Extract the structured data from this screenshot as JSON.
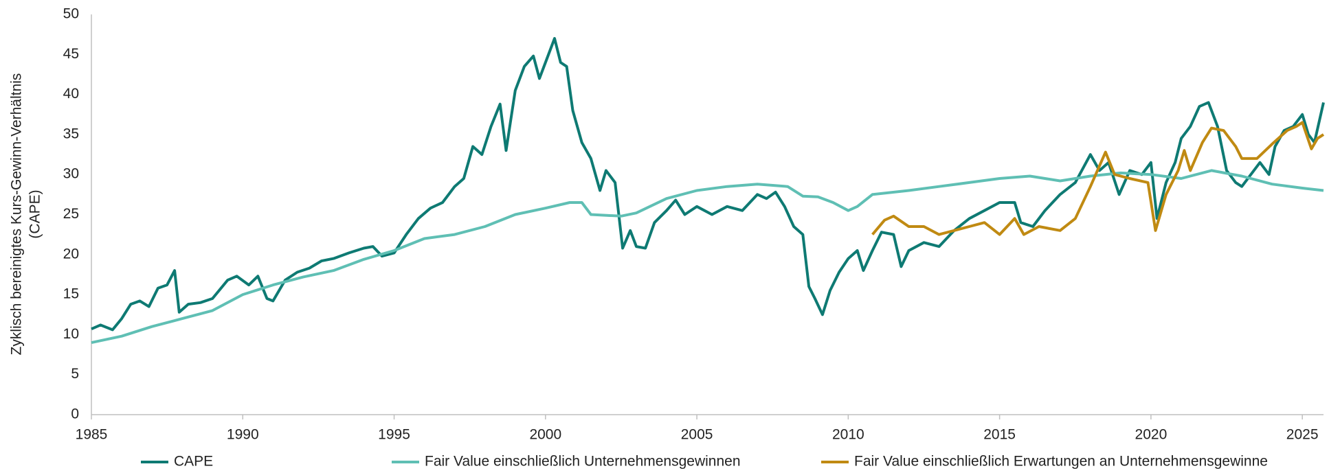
{
  "chart_data": {
    "type": "line",
    "ylabel": [
      "Zyklisch bereinigtes Kurs-Gewinn-Verhältnis",
      "(CAPE)"
    ],
    "xlim": [
      1985,
      2025.7
    ],
    "xticks": [
      1985,
      1990,
      1995,
      2000,
      2005,
      2010,
      2015,
      2020,
      2025
    ],
    "ylim": [
      0,
      50
    ],
    "yticks": [
      0,
      5,
      10,
      15,
      20,
      25,
      30,
      35,
      40,
      45,
      50
    ],
    "grid": false,
    "legend": "bottom",
    "series": [
      {
        "name": "CAPE",
        "color": "#0e7a73",
        "x": [
          1985.0,
          1985.3,
          1985.7,
          1986.0,
          1986.3,
          1986.6,
          1986.9,
          1987.2,
          1987.5,
          1987.75,
          1987.9,
          1988.2,
          1988.6,
          1989.0,
          1989.5,
          1989.8,
          1990.2,
          1990.5,
          1990.8,
          1991.0,
          1991.4,
          1991.8,
          1992.2,
          1992.6,
          1993.0,
          1993.5,
          1994.0,
          1994.3,
          1994.6,
          1995.0,
          1995.4,
          1995.8,
          1996.2,
          1996.6,
          1997.0,
          1997.3,
          1997.6,
          1997.9,
          1998.2,
          1998.5,
          1998.7,
          1999.0,
          1999.3,
          1999.6,
          1999.8,
          2000.0,
          2000.3,
          2000.5,
          2000.7,
          2000.9,
          2001.2,
          2001.5,
          2001.8,
          2002.0,
          2002.3,
          2002.55,
          2002.8,
          2003.0,
          2003.3,
          2003.6,
          2004.0,
          2004.3,
          2004.6,
          2005.0,
          2005.5,
          2006.0,
          2006.5,
          2007.0,
          2007.3,
          2007.6,
          2007.9,
          2008.2,
          2008.5,
          2008.7,
          2008.9,
          2009.15,
          2009.4,
          2009.7,
          2010.0,
          2010.3,
          2010.5,
          2010.8,
          2011.1,
          2011.5,
          2011.75,
          2012.0,
          2012.5,
          2013.0,
          2013.5,
          2014.0,
          2014.5,
          2015.0,
          2015.5,
          2015.7,
          2016.1,
          2016.5,
          2017.0,
          2017.5,
          2018.0,
          2018.3,
          2018.6,
          2018.95,
          2019.3,
          2019.7,
          2020.0,
          2020.2,
          2020.5,
          2020.8,
          2021.0,
          2021.3,
          2021.6,
          2021.9,
          2022.2,
          2022.5,
          2022.8,
          2023.0,
          2023.3,
          2023.6,
          2023.9,
          2024.1,
          2024.4,
          2024.7,
          2025.0,
          2025.2,
          2025.4,
          2025.7
        ],
        "values": [
          10.7,
          11.2,
          10.6,
          12.0,
          13.8,
          14.2,
          13.5,
          15.8,
          16.2,
          18.0,
          12.8,
          13.8,
          14.0,
          14.5,
          16.8,
          17.3,
          16.2,
          17.3,
          14.5,
          14.2,
          16.8,
          17.8,
          18.3,
          19.2,
          19.5,
          20.2,
          20.8,
          21.0,
          19.8,
          20.2,
          22.5,
          24.5,
          25.8,
          26.5,
          28.5,
          29.5,
          33.5,
          32.5,
          36.0,
          38.8,
          33.0,
          40.5,
          43.5,
          44.8,
          42.0,
          44.0,
          47.0,
          44.0,
          43.5,
          38.0,
          34.0,
          32.0,
          28.0,
          30.5,
          29.0,
          20.8,
          23.0,
          21.0,
          20.8,
          24.0,
          25.5,
          26.8,
          25.0,
          26.0,
          25.0,
          26.0,
          25.5,
          27.5,
          27.0,
          27.8,
          26.0,
          23.5,
          22.5,
          16.0,
          14.5,
          12.5,
          15.5,
          17.8,
          19.5,
          20.5,
          18.0,
          20.5,
          22.8,
          22.5,
          18.5,
          20.5,
          21.5,
          21.0,
          23.0,
          24.5,
          25.5,
          26.5,
          26.5,
          24.0,
          23.5,
          25.5,
          27.5,
          29.0,
          32.5,
          30.5,
          31.5,
          27.5,
          30.5,
          30.0,
          31.5,
          24.5,
          29.0,
          31.5,
          34.5,
          36.0,
          38.5,
          39.0,
          36.0,
          30.5,
          29.0,
          28.5,
          30.0,
          31.5,
          30.0,
          33.5,
          35.5,
          36.0,
          37.5,
          35.0,
          34.0,
          39.0
        ]
      },
      {
        "name": "Fair Value einschließlich Unternehmensgewinnen",
        "color": "#5fbfb4",
        "x": [
          1985,
          1986,
          1987,
          1988,
          1989,
          1990,
          1991,
          1992,
          1993,
          1994,
          1995,
          1996,
          1997,
          1998,
          1999,
          2000,
          2000.8,
          2001.2,
          2001.5,
          2002.5,
          2003.0,
          2004,
          2005,
          2006,
          2007,
          2008,
          2008.5,
          2009,
          2009.5,
          2010,
          2010.3,
          2010.8,
          2012,
          2013,
          2014,
          2015,
          2016,
          2017,
          2018,
          2019,
          2020,
          2021,
          2022,
          2023,
          2024,
          2025,
          2025.7
        ],
        "values": [
          9.0,
          9.8,
          11.0,
          12.0,
          13.0,
          15.0,
          16.2,
          17.2,
          18.0,
          19.4,
          20.5,
          22.0,
          22.5,
          23.5,
          25.0,
          25.8,
          26.5,
          26.5,
          25.0,
          24.8,
          25.2,
          27.0,
          28.0,
          28.5,
          28.8,
          28.5,
          27.3,
          27.2,
          26.5,
          25.5,
          26.0,
          27.5,
          28.0,
          28.5,
          29.0,
          29.5,
          29.8,
          29.2,
          29.8,
          30.2,
          30.0,
          29.5,
          30.5,
          29.8,
          28.8,
          28.3,
          28.0
        ]
      },
      {
        "name": "Fair Value einschließlich Erwartungen an Unternehmensgewinne",
        "color": "#c08a12",
        "x": [
          2010.8,
          2011.2,
          2011.5,
          2012,
          2012.5,
          2013,
          2013.5,
          2014,
          2014.5,
          2015,
          2015.5,
          2015.8,
          2016.3,
          2017,
          2017.5,
          2018,
          2018.5,
          2018.8,
          2019.3,
          2019.9,
          2020.15,
          2020.5,
          2020.9,
          2021.1,
          2021.3,
          2021.7,
          2022.0,
          2022.4,
          2022.8,
          2023.0,
          2023.5,
          2024.0,
          2024.5,
          2024.8,
          2025.0,
          2025.3,
          2025.5,
          2025.7
        ],
        "values": [
          22.5,
          24.3,
          24.8,
          23.5,
          23.5,
          22.5,
          23.0,
          23.5,
          24.0,
          22.5,
          24.5,
          22.5,
          23.5,
          23.0,
          24.5,
          28.5,
          32.8,
          30.0,
          29.5,
          29.0,
          23.0,
          27.5,
          30.5,
          33.0,
          30.5,
          34.0,
          35.8,
          35.5,
          33.5,
          32.0,
          32.0,
          33.8,
          35.5,
          36.0,
          36.5,
          33.2,
          34.5,
          35.0
        ]
      }
    ]
  }
}
